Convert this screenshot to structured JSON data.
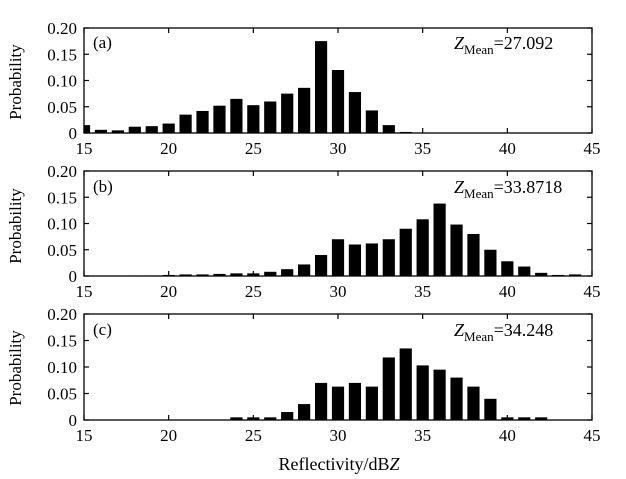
{
  "figure": {
    "xlabel_main": "Reflectivity/dB",
    "xlabel_unit": "Z"
  },
  "chart_data": [
    {
      "type": "bar",
      "panel_label": "(a)",
      "mean_symbol": "Z",
      "mean_subscript": "Mean",
      "mean_value": "=27.092",
      "ylabel": "Probability",
      "xlim": [
        15,
        45
      ],
      "ylim": [
        0,
        0.2
      ],
      "x_ticks": [
        "15",
        "20",
        "25",
        "30",
        "35",
        "40",
        "45"
      ],
      "y_ticks": [
        "0",
        "0.05",
        "0.10",
        "0.15",
        "0.20"
      ],
      "bar_width": 0.72,
      "x": [
        15,
        16,
        17,
        18,
        19,
        20,
        21,
        22,
        23,
        24,
        25,
        26,
        27,
        28,
        29,
        30,
        31,
        32,
        33,
        34,
        35
      ],
      "values": [
        0.015,
        0.006,
        0.005,
        0.012,
        0.013,
        0.018,
        0.035,
        0.042,
        0.052,
        0.065,
        0.053,
        0.06,
        0.075,
        0.086,
        0.175,
        0.12,
        0.078,
        0.043,
        0.015,
        0.002,
        0.001
      ]
    },
    {
      "type": "bar",
      "panel_label": "(b)",
      "mean_symbol": "Z",
      "mean_subscript": "Mean",
      "mean_value": "=33.8718",
      "ylabel": "Probability",
      "xlim": [
        15,
        45
      ],
      "ylim": [
        0,
        0.2
      ],
      "x_ticks": [
        "15",
        "20",
        "25",
        "30",
        "35",
        "40",
        "45"
      ],
      "y_ticks": [
        "0",
        "0.05",
        "0.10",
        "0.15",
        "0.20"
      ],
      "bar_width": 0.72,
      "x": [
        18,
        19,
        20,
        21,
        22,
        23,
        24,
        25,
        26,
        27,
        28,
        29,
        30,
        31,
        32,
        33,
        34,
        35,
        36,
        37,
        38,
        39,
        40,
        41,
        42,
        43,
        44
      ],
      "values": [
        0.001,
        0.001,
        0.002,
        0.003,
        0.003,
        0.004,
        0.005,
        0.005,
        0.008,
        0.013,
        0.022,
        0.04,
        0.07,
        0.06,
        0.062,
        0.07,
        0.09,
        0.108,
        0.138,
        0.098,
        0.08,
        0.05,
        0.028,
        0.018,
        0.006,
        0.002,
        0.003
      ]
    },
    {
      "type": "bar",
      "panel_label": "(c)",
      "mean_symbol": "Z",
      "mean_subscript": "Mean",
      "mean_value": "=34.248",
      "ylabel": "Probability",
      "xlim": [
        15,
        45
      ],
      "ylim": [
        0,
        0.2
      ],
      "x_ticks": [
        "15",
        "20",
        "25",
        "30",
        "35",
        "40",
        "45"
      ],
      "y_ticks": [
        "0",
        "0.05",
        "0.10",
        "0.15",
        "0.20"
      ],
      "bar_width": 0.72,
      "x": [
        24,
        25,
        26,
        27,
        28,
        29,
        30,
        31,
        32,
        33,
        34,
        35,
        36,
        37,
        38,
        39,
        40,
        41,
        42
      ],
      "values": [
        0.005,
        0.005,
        0.005,
        0.015,
        0.03,
        0.07,
        0.063,
        0.07,
        0.063,
        0.118,
        0.135,
        0.103,
        0.095,
        0.08,
        0.063,
        0.04,
        0.005,
        0.005,
        0.005
      ]
    }
  ]
}
